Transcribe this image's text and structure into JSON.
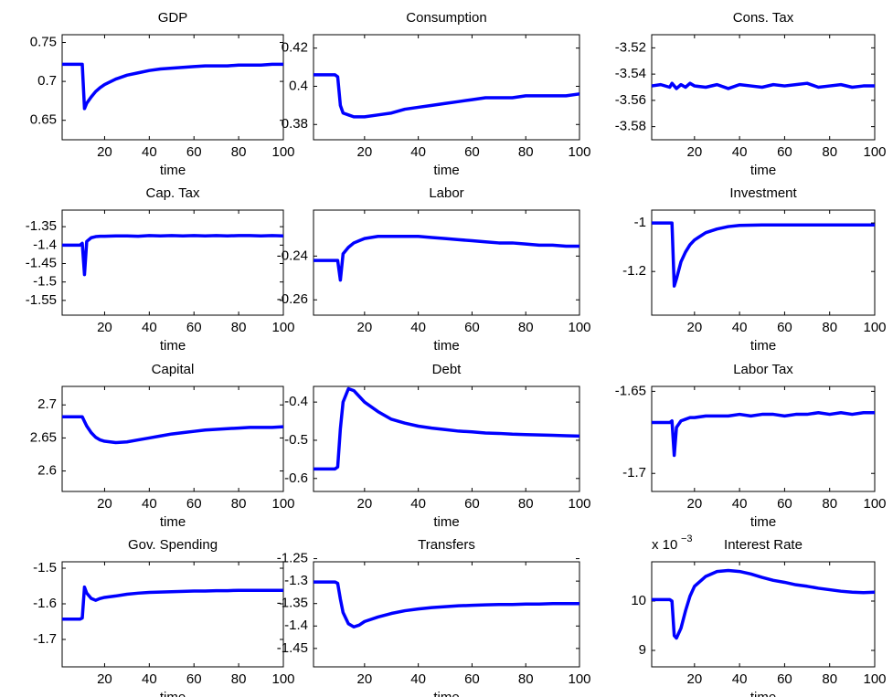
{
  "chart_data": [
    {
      "type": "line",
      "title": "GDP",
      "x_label": "time",
      "x": [
        1,
        5,
        9,
        10,
        11,
        12,
        14,
        16,
        18,
        20,
        25,
        30,
        35,
        40,
        45,
        50,
        55,
        60,
        65,
        70,
        75,
        80,
        85,
        90,
        95,
        100
      ],
      "xlim": [
        1,
        100
      ],
      "xticks": [
        20,
        40,
        60,
        80,
        100
      ],
      "ylim": [
        0.625,
        0.76
      ],
      "yticks": [
        0.65,
        0.7,
        0.75
      ],
      "series": [
        {
          "color": "#0000ff",
          "values": [
            0.722,
            0.722,
            0.722,
            0.722,
            0.665,
            0.672,
            0.68,
            0.687,
            0.692,
            0.696,
            0.703,
            0.708,
            0.711,
            0.714,
            0.716,
            0.717,
            0.718,
            0.719,
            0.72,
            0.72,
            0.72,
            0.721,
            0.721,
            0.721,
            0.722,
            0.722
          ]
        }
      ]
    },
    {
      "type": "line",
      "title": "Consumption",
      "x_label": "time",
      "x": [
        1,
        5,
        9,
        10,
        11,
        12,
        14,
        16,
        18,
        20,
        25,
        30,
        35,
        40,
        45,
        50,
        55,
        60,
        65,
        70,
        75,
        80,
        85,
        90,
        95,
        100
      ],
      "xlim": [
        1,
        100
      ],
      "xticks": [
        20,
        40,
        60,
        80,
        100
      ],
      "ylim": [
        0.372,
        0.427
      ],
      "yticks": [
        0.38,
        0.4,
        0.42
      ],
      "series": [
        {
          "color": "#0000ff",
          "values": [
            0.406,
            0.406,
            0.406,
            0.405,
            0.39,
            0.386,
            0.385,
            0.384,
            0.384,
            0.384,
            0.385,
            0.386,
            0.388,
            0.389,
            0.39,
            0.391,
            0.392,
            0.393,
            0.394,
            0.394,
            0.394,
            0.395,
            0.395,
            0.395,
            0.395,
            0.396
          ]
        }
      ]
    },
    {
      "type": "line",
      "title": "Cons. Tax",
      "x_label": "time",
      "x": [
        1,
        5,
        9,
        10,
        11,
        12,
        14,
        16,
        18,
        20,
        25,
        30,
        35,
        40,
        45,
        50,
        55,
        60,
        65,
        70,
        75,
        80,
        85,
        90,
        95,
        100
      ],
      "xlim": [
        1,
        100
      ],
      "xticks": [
        20,
        40,
        60,
        80,
        100
      ],
      "ylim": [
        -3.59,
        -3.51
      ],
      "yticks": [
        -3.52,
        -3.54,
        -3.56,
        -3.58
      ],
      "series": [
        {
          "color": "#0000ff",
          "values": [
            -3.549,
            -3.548,
            -3.55,
            -3.547,
            -3.549,
            -3.551,
            -3.548,
            -3.55,
            -3.547,
            -3.549,
            -3.55,
            -3.548,
            -3.551,
            -3.548,
            -3.549,
            -3.55,
            -3.548,
            -3.549,
            -3.548,
            -3.547,
            -3.55,
            -3.549,
            -3.548,
            -3.55,
            -3.549,
            -3.549
          ]
        }
      ]
    },
    {
      "type": "line",
      "title": "Cap. Tax",
      "x_label": "time",
      "x": [
        1,
        5,
        9,
        10,
        11,
        12,
        14,
        16,
        18,
        20,
        25,
        30,
        35,
        40,
        45,
        50,
        55,
        60,
        65,
        70,
        75,
        80,
        85,
        90,
        95,
        100
      ],
      "xlim": [
        1,
        100
      ],
      "xticks": [
        20,
        40,
        60,
        80,
        100
      ],
      "ylim": [
        -1.59,
        -1.305
      ],
      "yticks": [
        -1.35,
        -1.4,
        -1.45,
        -1.5,
        -1.55
      ],
      "series": [
        {
          "color": "#0000ff",
          "values": [
            -1.4,
            -1.4,
            -1.4,
            -1.395,
            -1.48,
            -1.39,
            -1.38,
            -1.377,
            -1.376,
            -1.376,
            -1.375,
            -1.375,
            -1.376,
            -1.374,
            -1.375,
            -1.374,
            -1.375,
            -1.374,
            -1.375,
            -1.374,
            -1.375,
            -1.374,
            -1.374,
            -1.375,
            -1.374,
            -1.375
          ]
        }
      ]
    },
    {
      "type": "line",
      "title": "Labor",
      "x_label": "time",
      "x": [
        1,
        5,
        9,
        10,
        11,
        12,
        14,
        16,
        18,
        20,
        25,
        30,
        35,
        40,
        45,
        50,
        55,
        60,
        65,
        70,
        75,
        80,
        85,
        90,
        95,
        100
      ],
      "xlim": [
        1,
        100
      ],
      "xticks": [
        20,
        40,
        60,
        80,
        100
      ],
      "ylim": [
        -0.267,
        -0.219
      ],
      "yticks": [
        -0.24,
        -0.26
      ],
      "series": [
        {
          "color": "#0000ff",
          "values": [
            -0.242,
            -0.242,
            -0.242,
            -0.242,
            -0.251,
            -0.239,
            -0.236,
            -0.234,
            -0.233,
            -0.232,
            -0.231,
            -0.231,
            -0.231,
            -0.231,
            -0.2315,
            -0.232,
            -0.2325,
            -0.233,
            -0.2335,
            -0.234,
            -0.234,
            -0.2345,
            -0.235,
            -0.235,
            -0.2355,
            -0.2355
          ]
        }
      ]
    },
    {
      "type": "line",
      "title": "Investment",
      "x_label": "time",
      "x": [
        1,
        5,
        9,
        10,
        11,
        12,
        14,
        16,
        18,
        20,
        25,
        30,
        35,
        40,
        45,
        50,
        55,
        60,
        65,
        70,
        75,
        80,
        85,
        90,
        95,
        100
      ],
      "xlim": [
        1,
        100
      ],
      "xticks": [
        20,
        40,
        60,
        80,
        100
      ],
      "ylim": [
        -1.38,
        -0.947
      ],
      "yticks": [
        -1,
        -1.2
      ],
      "series": [
        {
          "color": "#0000ff",
          "values": [
            -1.0,
            -1.0,
            -1.0,
            -1.0,
            -1.26,
            -1.23,
            -1.16,
            -1.12,
            -1.09,
            -1.07,
            -1.04,
            -1.025,
            -1.015,
            -1.01,
            -1.009,
            -1.008,
            -1.008,
            -1.008,
            -1.008,
            -1.008,
            -1.008,
            -1.008,
            -1.008,
            -1.008,
            -1.008,
            -1.008
          ]
        }
      ]
    },
    {
      "type": "line",
      "title": "Capital",
      "x_label": "time",
      "x": [
        1,
        5,
        9,
        10,
        11,
        12,
        14,
        16,
        18,
        20,
        25,
        30,
        35,
        40,
        45,
        50,
        55,
        60,
        65,
        70,
        75,
        80,
        85,
        90,
        95,
        100
      ],
      "xlim": [
        1,
        100
      ],
      "xticks": [
        20,
        40,
        60,
        80,
        100
      ],
      "ylim": [
        2.569,
        2.728
      ],
      "yticks": [
        2.6,
        2.65,
        2.7
      ],
      "series": [
        {
          "color": "#0000ff",
          "values": [
            2.682,
            2.682,
            2.682,
            2.682,
            2.675,
            2.668,
            2.658,
            2.651,
            2.647,
            2.645,
            2.643,
            2.644,
            2.647,
            2.65,
            2.653,
            2.656,
            2.658,
            2.66,
            2.662,
            2.663,
            2.664,
            2.665,
            2.666,
            2.666,
            2.666,
            2.667
          ]
        }
      ]
    },
    {
      "type": "line",
      "title": "Debt",
      "x_label": "time",
      "x": [
        1,
        5,
        9,
        10,
        11,
        12,
        14,
        16,
        18,
        20,
        25,
        30,
        35,
        40,
        45,
        50,
        55,
        60,
        65,
        70,
        75,
        80,
        85,
        90,
        95,
        100
      ],
      "xlim": [
        1,
        100
      ],
      "xticks": [
        20,
        40,
        60,
        80,
        100
      ],
      "ylim": [
        -0.634,
        -0.359
      ],
      "yticks": [
        -0.4,
        -0.5,
        -0.6
      ],
      "series": [
        {
          "color": "#0000ff",
          "values": [
            -0.575,
            -0.575,
            -0.575,
            -0.57,
            -0.47,
            -0.4,
            -0.365,
            -0.37,
            -0.385,
            -0.4,
            -0.425,
            -0.445,
            -0.455,
            -0.463,
            -0.468,
            -0.472,
            -0.476,
            -0.478,
            -0.481,
            -0.482,
            -0.484,
            -0.485,
            -0.486,
            -0.487,
            -0.488,
            -0.489
          ]
        }
      ]
    },
    {
      "type": "line",
      "title": "Labor Tax",
      "x_label": "time",
      "x": [
        1,
        5,
        9,
        10,
        11,
        12,
        14,
        16,
        18,
        20,
        25,
        30,
        35,
        40,
        45,
        50,
        55,
        60,
        65,
        70,
        75,
        80,
        85,
        90,
        95,
        100
      ],
      "xlim": [
        1,
        100
      ],
      "xticks": [
        20,
        40,
        60,
        80,
        100
      ],
      "ylim": [
        -1.711,
        -1.647
      ],
      "yticks": [
        -1.65,
        -1.7
      ],
      "series": [
        {
          "color": "#0000ff",
          "values": [
            -1.669,
            -1.669,
            -1.669,
            -1.668,
            -1.689,
            -1.672,
            -1.668,
            -1.667,
            -1.666,
            -1.666,
            -1.665,
            -1.665,
            -1.665,
            -1.664,
            -1.665,
            -1.664,
            -1.664,
            -1.665,
            -1.664,
            -1.664,
            -1.663,
            -1.664,
            -1.663,
            -1.664,
            -1.663,
            -1.663
          ]
        }
      ]
    },
    {
      "type": "line",
      "title": "Gov. Spending",
      "x_label": "time",
      "x": [
        1,
        5,
        9,
        10,
        11,
        12,
        14,
        16,
        18,
        20,
        25,
        30,
        35,
        40,
        45,
        50,
        55,
        60,
        65,
        70,
        75,
        80,
        85,
        90,
        95,
        100
      ],
      "xlim": [
        1,
        100
      ],
      "xticks": [
        20,
        40,
        60,
        80,
        100
      ],
      "ylim": [
        -1.777,
        -1.482
      ],
      "yticks": [
        -1.5,
        -1.6,
        -1.7
      ],
      "series": [
        {
          "color": "#0000ff",
          "values": [
            -1.643,
            -1.643,
            -1.643,
            -1.64,
            -1.553,
            -1.57,
            -1.585,
            -1.59,
            -1.585,
            -1.582,
            -1.578,
            -1.573,
            -1.57,
            -1.568,
            -1.567,
            -1.566,
            -1.565,
            -1.564,
            -1.564,
            -1.563,
            -1.563,
            -1.562,
            -1.562,
            -1.562,
            -1.562,
            -1.562
          ]
        }
      ]
    },
    {
      "type": "line",
      "title": "Transfers",
      "x_label": "time",
      "x": [
        1,
        5,
        9,
        10,
        11,
        12,
        14,
        16,
        18,
        20,
        25,
        30,
        35,
        40,
        45,
        50,
        55,
        60,
        65,
        70,
        75,
        80,
        85,
        90,
        95,
        100
      ],
      "xlim": [
        1,
        100
      ],
      "xticks": [
        20,
        40,
        60,
        80,
        100
      ],
      "ylim": [
        -1.491,
        -1.257
      ],
      "yticks": [
        -1.25,
        -1.3,
        -1.35,
        -1.4,
        -1.45
      ],
      "series": [
        {
          "color": "#0000ff",
          "values": [
            -1.302,
            -1.302,
            -1.302,
            -1.305,
            -1.34,
            -1.37,
            -1.395,
            -1.402,
            -1.398,
            -1.39,
            -1.38,
            -1.372,
            -1.366,
            -1.362,
            -1.359,
            -1.357,
            -1.355,
            -1.354,
            -1.353,
            -1.352,
            -1.352,
            -1.351,
            -1.351,
            -1.35,
            -1.35,
            -1.35
          ]
        }
      ]
    },
    {
      "type": "line",
      "title": "Interest Rate",
      "x_label": "time",
      "y_scale_base": "x 10",
      "y_scale_exponent": "−3",
      "x": [
        1,
        5,
        9,
        10,
        11,
        12,
        14,
        16,
        18,
        20,
        25,
        30,
        35,
        40,
        45,
        50,
        55,
        60,
        65,
        70,
        75,
        80,
        85,
        90,
        95,
        100
      ],
      "xlim": [
        1,
        100
      ],
      "xticks": [
        20,
        40,
        60,
        80,
        100
      ],
      "ylim": [
        8.667,
        10.796
      ],
      "yticks": [
        9,
        10
      ],
      "series": [
        {
          "color": "#0000ff",
          "values": [
            10.03,
            10.03,
            10.03,
            10.0,
            9.3,
            9.25,
            9.45,
            9.8,
            10.1,
            10.3,
            10.5,
            10.6,
            10.62,
            10.6,
            10.55,
            10.48,
            10.42,
            10.38,
            10.33,
            10.3,
            10.26,
            10.23,
            10.2,
            10.18,
            10.17,
            10.18
          ]
        }
      ]
    }
  ]
}
